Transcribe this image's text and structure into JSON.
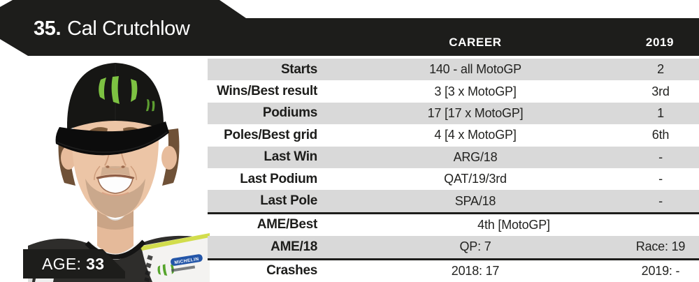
{
  "header": {
    "number": "35.",
    "name": "Cal Crutchlow",
    "columns": {
      "career": "CAREER",
      "year": "2019"
    }
  },
  "photo": {
    "age_label": "AGE:",
    "age_value": "33"
  },
  "table": {
    "rows": [
      {
        "label": "Starts",
        "career": "140 - all MotoGP",
        "year": "2"
      },
      {
        "label": "Wins/Best result",
        "career": "3 [3 x MotoGP]",
        "year": "3rd"
      },
      {
        "label": "Podiums",
        "career": "17 [17 x MotoGP]",
        "year": "1"
      },
      {
        "label": "Poles/Best grid",
        "career": "4 [4 x MotoGP]",
        "year": "6th"
      },
      {
        "label": "Last Win",
        "career": "ARG/18",
        "year": "-"
      },
      {
        "label": "Last Podium",
        "career": "QAT/19/3rd",
        "year": "-"
      },
      {
        "label": "Last Pole",
        "career": "SPA/18",
        "year": "-"
      },
      {
        "label": "AME/Best",
        "career": "4th [MotoGP]",
        "year": "",
        "span": true,
        "divider_before": true
      },
      {
        "label": "AME/18",
        "career": "QP: 7",
        "year": "Race: 19"
      },
      {
        "label": "Crashes",
        "career": "2018: 17",
        "year": "2019: -",
        "divider_before": true
      }
    ]
  },
  "colors": {
    "black": "#1d1d1b",
    "row_gray": "#d9d9d9",
    "text": "#232321",
    "monster_green": "#7dc242",
    "white": "#ffffff"
  }
}
